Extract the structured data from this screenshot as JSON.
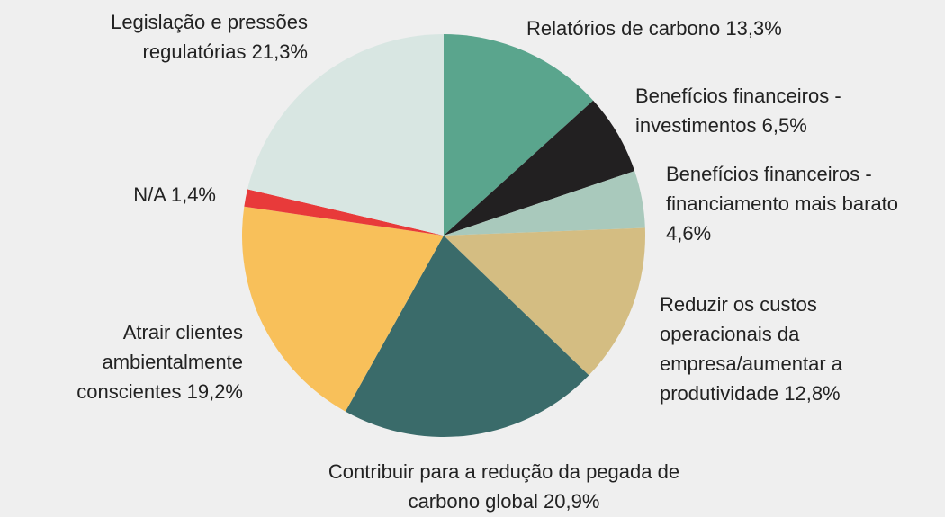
{
  "chart_data": {
    "type": "pie",
    "categories": [
      "Relatórios de carbono",
      "Benefícios financeiros - investimentos",
      "Benefícios financeiros - financiamento mais barato",
      "Reduzir os custos operacionais da empresa/aumentar a produtividade",
      "Contribuir para a redução da pegada de carbono global",
      "Atrair clientes ambientalmente conscientes",
      "N/A",
      "Legislação e pressões regulatórias"
    ],
    "values": [
      13.3,
      6.5,
      4.6,
      12.8,
      20.9,
      19.2,
      1.4,
      21.3
    ],
    "value_labels": [
      "13,3%",
      "6,5%",
      "4,6%",
      "12,8%",
      "20,9%",
      "19,2%",
      "1,4%",
      "21,3%"
    ],
    "colors": [
      "#5aa58d",
      "#222021",
      "#a9c9bc",
      "#d4bd82",
      "#3a6b6a",
      "#f8c05a",
      "#e83a3a",
      "#d8e6e2"
    ]
  }
}
